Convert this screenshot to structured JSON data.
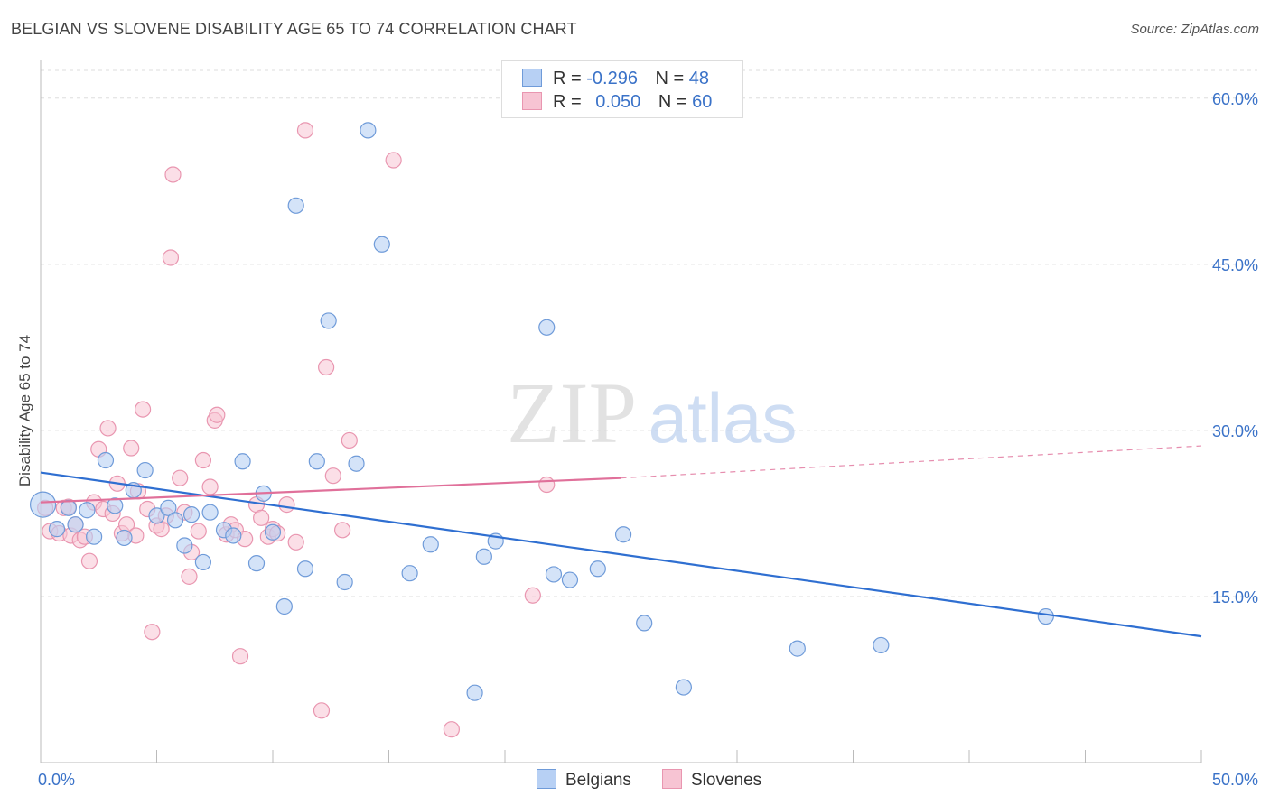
{
  "title": "BELGIAN VS SLOVENE DISABILITY AGE 65 TO 74 CORRELATION CHART",
  "source": "Source: ZipAtlas.com",
  "watermark": {
    "zip": "ZIP",
    "atlas": "atlas"
  },
  "legend": {
    "rows": [
      {
        "r_label": "R =",
        "r_value": "-0.296",
        "n_label": "N =",
        "n_value": "48"
      },
      {
        "r_label": "R =",
        "r_value": "0.050",
        "n_label": "N =",
        "n_value": "60"
      }
    ]
  },
  "bottom_legend": {
    "belgians": "Belgians",
    "slovenes": "Slovenes"
  },
  "colors": {
    "belgian_fill": "#b7d0f4",
    "belgian_stroke": "#6f9bd9",
    "belgian_line": "#2f6fd1",
    "slovene_fill": "#f7c4d3",
    "slovene_stroke": "#e996b0",
    "slovene_line": "#e0709a",
    "tick_text": "#3a72c8",
    "grid": "#dddddd"
  },
  "chart_data": {
    "type": "scatter",
    "title": "BELGIAN VS SLOVENE DISABILITY AGE 65 TO 74 CORRELATION CHART",
    "xlabel": "",
    "ylabel": "Disability Age 65 to 74",
    "xlim": [
      0,
      50
    ],
    "ylim": [
      0,
      63
    ],
    "x_tick_labels": [
      "0.0%",
      "50.0%"
    ],
    "y_ticks": [
      15,
      30,
      45,
      60
    ],
    "y_tick_labels": [
      "15.0%",
      "30.0%",
      "45.0%",
      "60.0%"
    ],
    "series": [
      {
        "name": "Belgians",
        "r": -0.296,
        "n": 48,
        "trend": {
          "x": [
            0,
            50
          ],
          "y": [
            26.2,
            11.4
          ]
        },
        "points": [
          [
            0.1,
            23.3
          ],
          [
            0.7,
            21.1
          ],
          [
            1.2,
            23.0
          ],
          [
            1.5,
            21.5
          ],
          [
            2.0,
            22.8
          ],
          [
            2.3,
            20.4
          ],
          [
            2.8,
            27.3
          ],
          [
            3.2,
            23.2
          ],
          [
            3.6,
            20.3
          ],
          [
            4.0,
            24.6
          ],
          [
            4.5,
            26.4
          ],
          [
            5.0,
            22.3
          ],
          [
            5.5,
            23.0
          ],
          [
            5.8,
            21.9
          ],
          [
            6.2,
            19.6
          ],
          [
            6.5,
            22.4
          ],
          [
            7.0,
            18.1
          ],
          [
            7.3,
            22.6
          ],
          [
            7.9,
            21.0
          ],
          [
            8.3,
            20.5
          ],
          [
            8.7,
            27.2
          ],
          [
            9.3,
            18.0
          ],
          [
            9.6,
            24.3
          ],
          [
            10.0,
            20.8
          ],
          [
            10.5,
            14.1
          ],
          [
            11.0,
            50.3
          ],
          [
            11.4,
            17.5
          ],
          [
            11.9,
            27.2
          ],
          [
            12.4,
            39.9
          ],
          [
            13.1,
            16.3
          ],
          [
            13.6,
            27.0
          ],
          [
            14.1,
            57.1
          ],
          [
            14.7,
            46.8
          ],
          [
            15.9,
            17.1
          ],
          [
            16.8,
            19.7
          ],
          [
            18.7,
            6.3
          ],
          [
            19.1,
            18.6
          ],
          [
            19.6,
            20.0
          ],
          [
            21.8,
            39.3
          ],
          [
            22.1,
            17.0
          ],
          [
            22.8,
            16.5
          ],
          [
            24.0,
            17.5
          ],
          [
            25.1,
            20.6
          ],
          [
            26.0,
            12.6
          ],
          [
            27.7,
            6.8
          ],
          [
            32.6,
            10.3
          ],
          [
            36.2,
            10.6
          ],
          [
            43.3,
            13.2
          ]
        ]
      },
      {
        "name": "Slovenes",
        "r": 0.05,
        "n": 60,
        "trend": {
          "x": [
            0,
            25
          ],
          "y": [
            23.5,
            25.7
          ]
        },
        "trend_dashed": {
          "x": [
            25,
            50
          ],
          "y": [
            25.7,
            28.6
          ]
        },
        "points": [
          [
            0.2,
            23.0
          ],
          [
            0.4,
            20.9
          ],
          [
            0.8,
            20.7
          ],
          [
            1.0,
            23.0
          ],
          [
            1.3,
            20.5
          ],
          [
            1.5,
            21.5
          ],
          [
            1.7,
            20.1
          ],
          [
            1.9,
            20.4
          ],
          [
            2.1,
            18.2
          ],
          [
            2.3,
            23.5
          ],
          [
            2.5,
            28.3
          ],
          [
            2.7,
            22.9
          ],
          [
            2.9,
            30.2
          ],
          [
            3.1,
            22.5
          ],
          [
            3.3,
            25.2
          ],
          [
            3.5,
            20.7
          ],
          [
            3.7,
            21.5
          ],
          [
            3.9,
            28.4
          ],
          [
            4.1,
            20.5
          ],
          [
            4.2,
            24.5
          ],
          [
            4.4,
            31.9
          ],
          [
            4.6,
            22.9
          ],
          [
            4.8,
            11.8
          ],
          [
            5.0,
            21.4
          ],
          [
            5.2,
            21.1
          ],
          [
            5.4,
            22.3
          ],
          [
            5.6,
            45.6
          ],
          [
            5.7,
            53.1
          ],
          [
            6.0,
            25.7
          ],
          [
            6.2,
            22.6
          ],
          [
            6.4,
            16.8
          ],
          [
            6.5,
            19.0
          ],
          [
            6.8,
            20.9
          ],
          [
            7.0,
            27.3
          ],
          [
            7.3,
            24.9
          ],
          [
            7.5,
            30.9
          ],
          [
            7.6,
            31.4
          ],
          [
            8.0,
            20.6
          ],
          [
            8.2,
            21.5
          ],
          [
            8.4,
            21.0
          ],
          [
            8.6,
            9.6
          ],
          [
            8.8,
            20.2
          ],
          [
            9.3,
            23.3
          ],
          [
            9.5,
            22.1
          ],
          [
            9.8,
            20.4
          ],
          [
            10.0,
            21.1
          ],
          [
            10.2,
            20.7
          ],
          [
            10.6,
            23.3
          ],
          [
            11.0,
            19.9
          ],
          [
            11.4,
            57.1
          ],
          [
            12.1,
            4.7
          ],
          [
            12.3,
            35.7
          ],
          [
            12.6,
            25.9
          ],
          [
            13.0,
            21.0
          ],
          [
            13.3,
            29.1
          ],
          [
            15.2,
            54.4
          ],
          [
            17.7,
            3.0
          ],
          [
            21.2,
            15.1
          ],
          [
            21.8,
            25.1
          ],
          [
            1.2,
            23.1
          ]
        ]
      }
    ]
  }
}
